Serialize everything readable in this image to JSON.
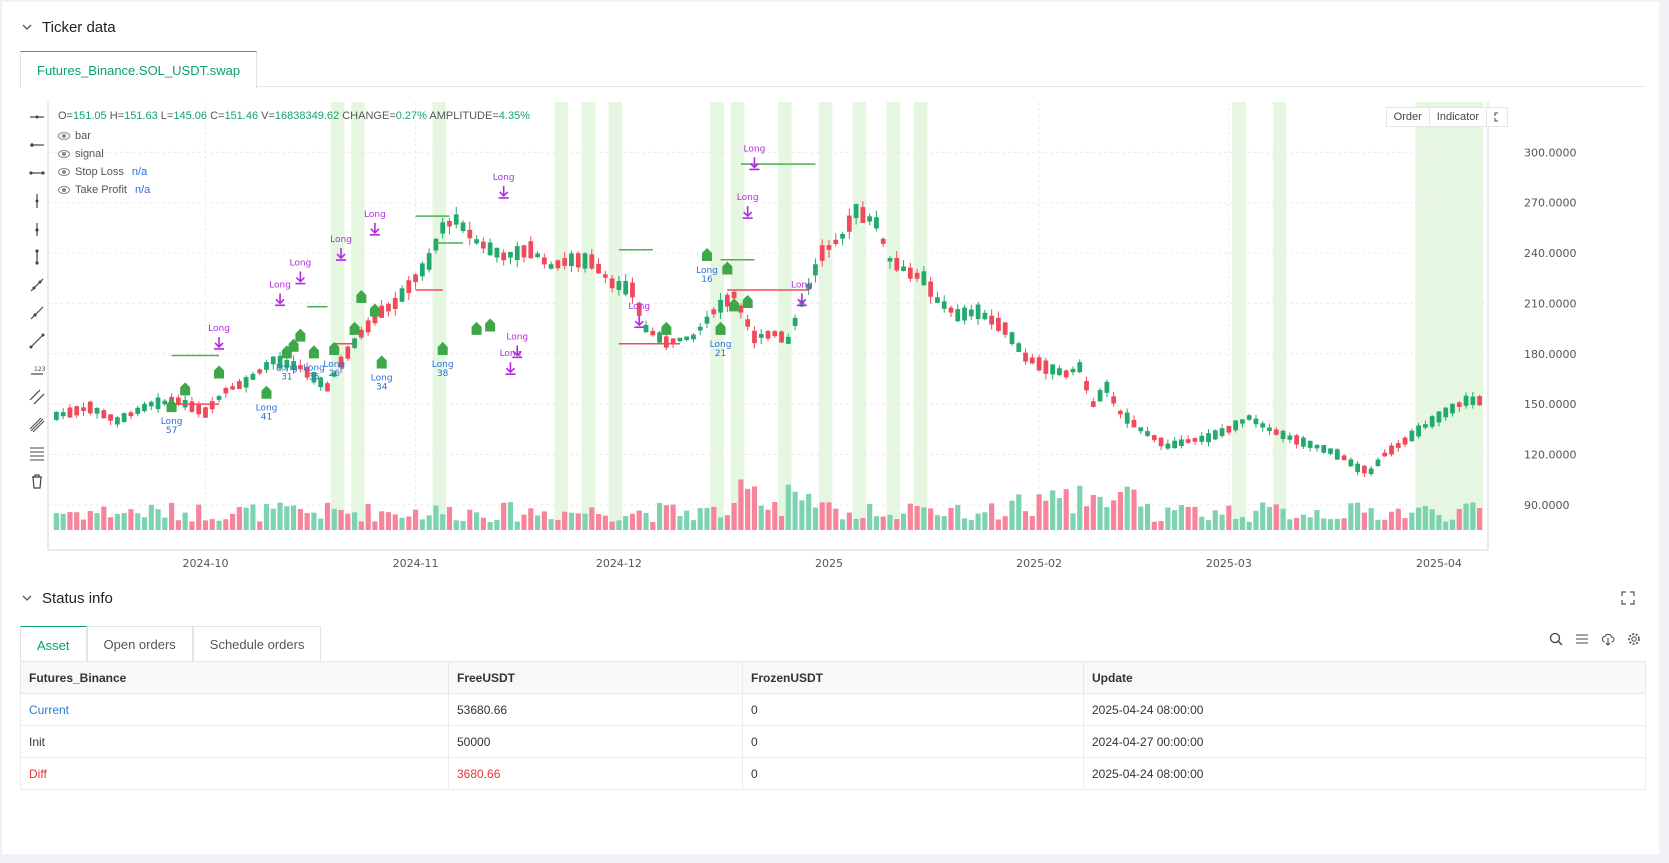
{
  "ticker": {
    "title": "Ticker data",
    "tab": "Futures_Binance.SOL_USDT.swap",
    "ohlc": {
      "o_label": "O=",
      "o": "151.05",
      "h_label": "H=",
      "h": "151.63",
      "l_label": "L=",
      "l": "145.06",
      "c_label": "C=",
      "c": "151.46",
      "v_label": "V=",
      "v": "16838349.62",
      "change_label": "CHANGE=",
      "change": "0.27%",
      "amp_label": "AMPLITUDE=",
      "amp": "4.35%"
    },
    "legend": [
      {
        "label": "bar",
        "value": ""
      },
      {
        "label": "signal",
        "value": ""
      },
      {
        "label": "Stop Loss",
        "value": "n/a"
      },
      {
        "label": "Take Profit",
        "value": "n/a"
      }
    ],
    "buttons": {
      "order": "Order",
      "indicator": "Indicator"
    },
    "colors": {
      "up": "#23a96e",
      "down": "#f04a5a",
      "vol_up": "#7dd3b0",
      "vol_down": "#f7849a",
      "signal": "#b22ae0",
      "highlight": "#e6f7e1",
      "tp": "#4caf50",
      "sl": "#f04a5a",
      "label_blue": "#2b6fd6"
    }
  },
  "chart_data": {
    "type": "candlestick",
    "y_ticks": [
      "300.0000",
      "270.0000",
      "240.0000",
      "210.0000",
      "180.0000",
      "150.0000",
      "120.0000",
      "90.0000"
    ],
    "y_tick_values": [
      300,
      270,
      240,
      210,
      180,
      150,
      120,
      90
    ],
    "ylim": [
      75,
      330
    ],
    "x_ticks": [
      "2024-10",
      "2024-11",
      "2024-12",
      "2025",
      "2025-02",
      "2025-03",
      "2025-04"
    ],
    "x_tick_day": [
      22,
      53,
      83,
      114,
      145,
      173,
      204
    ],
    "day_count": 211,
    "anchors": [
      [
        0,
        143
      ],
      [
        5,
        148
      ],
      [
        9,
        140
      ],
      [
        14,
        150
      ],
      [
        18,
        152
      ],
      [
        22,
        145
      ],
      [
        25,
        158
      ],
      [
        28,
        163
      ],
      [
        32,
        176
      ],
      [
        36,
        172
      ],
      [
        38,
        166
      ],
      [
        40,
        160
      ],
      [
        42,
        175
      ],
      [
        45,
        192
      ],
      [
        48,
        205
      ],
      [
        50,
        210
      ],
      [
        52,
        220
      ],
      [
        55,
        235
      ],
      [
        57,
        255
      ],
      [
        59,
        260
      ],
      [
        62,
        247
      ],
      [
        66,
        238
      ],
      [
        70,
        242
      ],
      [
        73,
        232
      ],
      [
        76,
        236
      ],
      [
        79,
        235
      ],
      [
        82,
        222
      ],
      [
        85,
        218
      ],
      [
        87,
        195
      ],
      [
        90,
        187
      ],
      [
        94,
        190
      ],
      [
        97,
        205
      ],
      [
        100,
        215
      ],
      [
        103,
        190
      ],
      [
        106,
        192
      ],
      [
        108,
        188
      ],
      [
        110,
        210
      ],
      [
        113,
        240
      ],
      [
        116,
        250
      ],
      [
        118,
        265
      ],
      [
        121,
        258
      ],
      [
        123,
        236
      ],
      [
        126,
        228
      ],
      [
        128,
        225
      ],
      [
        130,
        212
      ],
      [
        133,
        203
      ],
      [
        136,
        205
      ],
      [
        140,
        195
      ],
      [
        143,
        178
      ],
      [
        146,
        172
      ],
      [
        149,
        168
      ],
      [
        151,
        172
      ],
      [
        153,
        150
      ],
      [
        155,
        160
      ],
      [
        157,
        145
      ],
      [
        160,
        135
      ],
      [
        162,
        130
      ],
      [
        164,
        125
      ],
      [
        167,
        128
      ],
      [
        170,
        130
      ],
      [
        173,
        135
      ],
      [
        176,
        142
      ],
      [
        179,
        135
      ],
      [
        182,
        130
      ],
      [
        185,
        126
      ],
      [
        188,
        122
      ],
      [
        190,
        118
      ],
      [
        192,
        112
      ],
      [
        194,
        110
      ],
      [
        196,
        120
      ],
      [
        199,
        128
      ],
      [
        202,
        137
      ],
      [
        205,
        145
      ],
      [
        208,
        152
      ]
    ],
    "volume": {
      "max": 1
    }
  },
  "status": {
    "title": "Status info",
    "tabs": [
      "Asset",
      "Open orders",
      "Schedule orders"
    ],
    "columns": [
      "Futures_Binance",
      "FreeUSDT",
      "FrozenUSDT",
      "Update"
    ],
    "rows": [
      {
        "name": "Current",
        "free": "53680.66",
        "frozen": "0",
        "update": "2025-04-24 08:00:00"
      },
      {
        "name": "Init",
        "free": "50000",
        "frozen": "0",
        "update": "2024-04-27 00:00:00"
      },
      {
        "name": "Diff",
        "free": "3680.66",
        "frozen": "0",
        "update": "2025-04-24 08:00:00"
      }
    ]
  },
  "markers": {
    "signal_label": "Long",
    "labels": [
      "57",
      "41",
      "31",
      "35",
      "26",
      "34",
      "38",
      "16",
      "21"
    ]
  }
}
